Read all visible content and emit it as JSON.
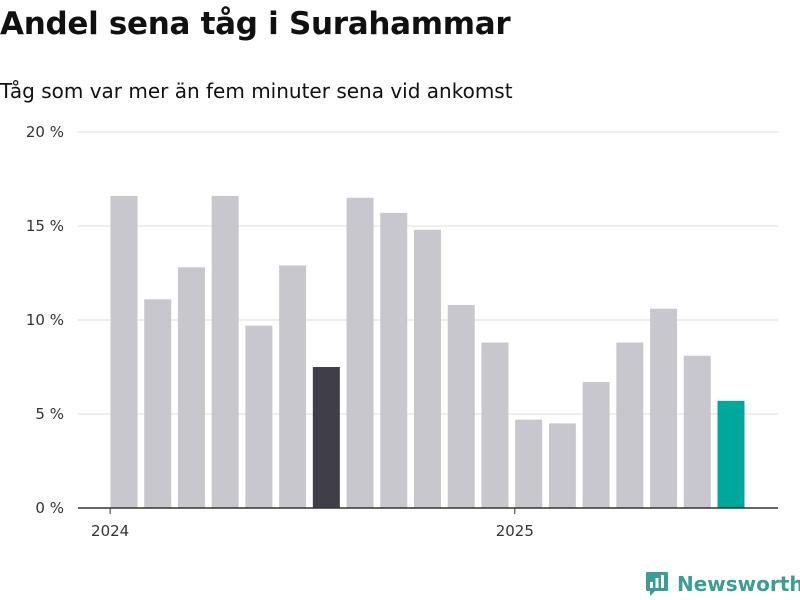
{
  "chart_data": {
    "type": "bar",
    "title": "Andel sena tåg i Surahammar",
    "subtitle": "Tåg som var mer än fem minuter sena vid ankomst",
    "xlabel": "",
    "ylabel": "",
    "categories": [
      "2024-01",
      "2024-02",
      "2024-03",
      "2024-04",
      "2024-05",
      "2024-06",
      "2024-07",
      "2024-08",
      "2024-09",
      "2024-10",
      "2024-11",
      "2024-12",
      "2025-01",
      "2025-02",
      "2025-03",
      "2025-04",
      "2025-05",
      "2025-06",
      "2025-07"
    ],
    "values": [
      16.6,
      11.1,
      12.8,
      16.6,
      9.7,
      12.9,
      7.5,
      16.5,
      15.7,
      14.8,
      10.8,
      8.8,
      4.7,
      4.5,
      6.7,
      8.8,
      10.6,
      8.1,
      5.7
    ],
    "bar_colors": [
      "#c8c7cd",
      "#c8c7cd",
      "#c8c7cd",
      "#c8c7cd",
      "#c8c7cd",
      "#c8c7cd",
      "#3f3e49",
      "#c8c7cd",
      "#c8c7cd",
      "#c8c7cd",
      "#c8c7cd",
      "#c8c7cd",
      "#c8c7cd",
      "#c8c7cd",
      "#c8c7cd",
      "#c8c7cd",
      "#c8c7cd",
      "#c8c7cd",
      "#00a79d"
    ],
    "ylim": [
      0,
      20
    ],
    "y_ticks": [
      0,
      5,
      10,
      15,
      20
    ],
    "y_tick_labels": [
      "0 %",
      "5 %",
      "10 %",
      "15 %",
      "20 %"
    ],
    "x_ticks": [
      {
        "category": "2024-01",
        "label": "2024"
      },
      {
        "category": "2025-01",
        "label": "2025"
      }
    ],
    "grid": true,
    "legend": "none"
  },
  "colors": {
    "grid": "#dddddd",
    "axis": "#333333",
    "brand": "#3a9e97"
  },
  "logo": {
    "text": "Newsworthy",
    "icon": "newsworthy-chart-icon"
  }
}
